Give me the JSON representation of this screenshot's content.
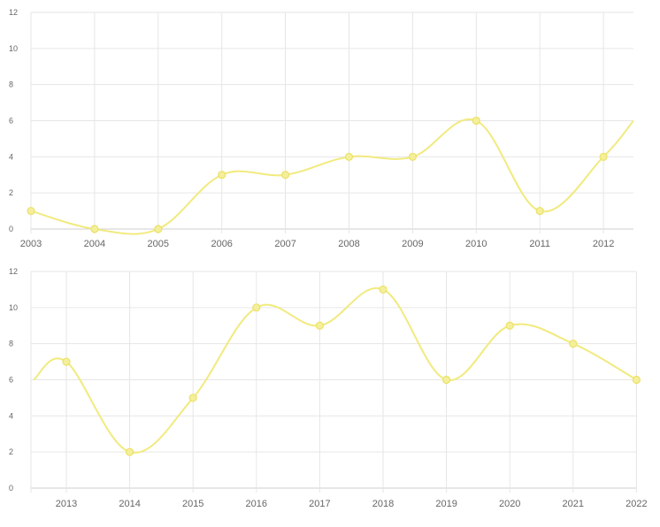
{
  "theme": {
    "series_color": "#f1ea7e",
    "point_fill": "#f4ef9a",
    "point_stroke": "#ece169"
  },
  "chart_data": [
    {
      "type": "line",
      "categories": [
        "2003",
        "2004",
        "2005",
        "2006",
        "2007",
        "2008",
        "2009",
        "2010",
        "2011",
        "2012"
      ],
      "values": [
        1,
        0,
        0,
        3,
        3,
        4,
        4,
        6,
        1,
        4
      ],
      "continuation_right": 6,
      "y_ticks": [
        "0",
        "2",
        "4",
        "6",
        "8",
        "10",
        "12"
      ],
      "ylim": [
        0,
        12
      ],
      "grid": true,
      "legend": "none"
    },
    {
      "type": "line",
      "categories": [
        "2013",
        "2014",
        "2015",
        "2016",
        "2017",
        "2018",
        "2019",
        "2020",
        "2021",
        "2022"
      ],
      "values": [
        7,
        2,
        5,
        10,
        9,
        11,
        6,
        9,
        8,
        6
      ],
      "continuation_left": 6,
      "y_ticks": [
        "0",
        "2",
        "4",
        "6",
        "8",
        "10",
        "12"
      ],
      "ylim": [
        0,
        12
      ],
      "grid": true,
      "legend": "none"
    }
  ]
}
